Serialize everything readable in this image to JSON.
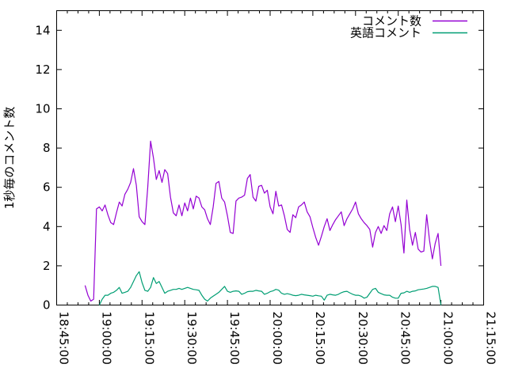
{
  "chart_data": {
    "type": "line",
    "title": "",
    "ylabel": "1秒毎のコメント数",
    "xlabel": "",
    "ylim": [
      0,
      15
    ],
    "yticks": [
      0,
      2,
      4,
      6,
      8,
      10,
      12,
      14
    ],
    "x_start": "18:45:00",
    "x_end": "21:15:00",
    "x_tick_labels": [
      "18:45:00",
      "19:00:00",
      "19:15:00",
      "19:30:00",
      "19:45:00",
      "20:00:00",
      "20:15:00",
      "20:30:00",
      "20:45:00",
      "21:00:00",
      "21:15:00"
    ],
    "x_minor_divisions": 4,
    "grid": false,
    "legend_position": "top-right-inside",
    "axis_color": "#000000",
    "background_color": "#ffffff",
    "series": [
      {
        "name": "コメント数",
        "color": "#9400d3",
        "start_time": "18:55",
        "interval_seconds": 60,
        "values": [
          1.0,
          0.5,
          0.2,
          0.3,
          4.9,
          5.0,
          4.8,
          5.1,
          4.6,
          4.2,
          4.1,
          4.7,
          5.25,
          5.05,
          5.65,
          5.9,
          6.25,
          6.95,
          6.1,
          4.5,
          4.25,
          4.1,
          6.0,
          8.35,
          7.5,
          6.4,
          6.85,
          6.25,
          6.9,
          6.7,
          5.5,
          4.7,
          4.55,
          5.1,
          4.55,
          5.2,
          4.8,
          5.45,
          4.9,
          5.55,
          5.45,
          5.0,
          4.85,
          4.4,
          4.1,
          5.0,
          6.2,
          6.3,
          5.45,
          5.25,
          4.55,
          3.7,
          3.65,
          5.3,
          5.45,
          5.5,
          5.6,
          6.45,
          6.65,
          5.5,
          5.3,
          6.05,
          6.1,
          5.7,
          5.85,
          5.0,
          4.65,
          5.8,
          5.05,
          5.1,
          4.55,
          3.85,
          3.7,
          4.6,
          4.45,
          5.0,
          5.1,
          5.25,
          4.75,
          4.5,
          3.95,
          3.45,
          3.05,
          3.5,
          4.0,
          4.4,
          3.8,
          4.1,
          4.35,
          4.55,
          4.75,
          4.05,
          4.4,
          4.65,
          4.9,
          5.25,
          4.65,
          4.4,
          4.2,
          4.05,
          3.85,
          2.95,
          3.7,
          4.0,
          3.65,
          4.05,
          3.8,
          4.65,
          5.0,
          4.25,
          5.05,
          4.1,
          2.65,
          5.35,
          3.85,
          3.05,
          3.7,
          2.85,
          2.7,
          2.75,
          4.6,
          3.3,
          2.35,
          3.15,
          3.65,
          2.0
        ]
      },
      {
        "name": "英語コメント",
        "color": "#009e73",
        "start_time": "19:00",
        "interval_seconds": 60,
        "values": [
          0.0,
          0.3,
          0.5,
          0.5,
          0.6,
          0.65,
          0.75,
          0.9,
          0.6,
          0.65,
          0.7,
          0.9,
          1.2,
          1.5,
          1.7,
          1.15,
          0.75,
          0.7,
          0.9,
          1.4,
          1.1,
          1.2,
          0.9,
          0.6,
          0.7,
          0.75,
          0.8,
          0.8,
          0.85,
          0.8,
          0.85,
          0.9,
          0.85,
          0.8,
          0.78,
          0.75,
          0.5,
          0.3,
          0.2,
          0.35,
          0.45,
          0.55,
          0.65,
          0.8,
          0.95,
          0.7,
          0.65,
          0.7,
          0.72,
          0.7,
          0.55,
          0.6,
          0.68,
          0.7,
          0.7,
          0.75,
          0.72,
          0.7,
          0.55,
          0.6,
          0.68,
          0.72,
          0.8,
          0.76,
          0.6,
          0.55,
          0.58,
          0.55,
          0.5,
          0.48,
          0.5,
          0.55,
          0.52,
          0.5,
          0.48,
          0.45,
          0.5,
          0.47,
          0.45,
          0.25,
          0.5,
          0.55,
          0.52,
          0.5,
          0.55,
          0.63,
          0.68,
          0.7,
          0.62,
          0.55,
          0.5,
          0.5,
          0.45,
          0.35,
          0.4,
          0.6,
          0.8,
          0.85,
          0.65,
          0.58,
          0.52,
          0.5,
          0.5,
          0.4,
          0.35,
          0.35,
          0.6,
          0.62,
          0.7,
          0.65,
          0.7,
          0.72,
          0.78,
          0.8,
          0.82,
          0.85,
          0.9,
          0.95,
          0.95,
          0.9,
          0.0
        ]
      }
    ]
  }
}
